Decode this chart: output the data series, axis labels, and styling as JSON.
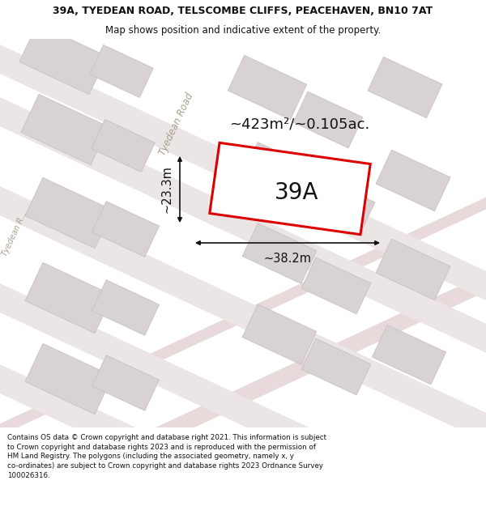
{
  "title_line1": "39A, TYEDEAN ROAD, TELSCOMBE CLIFFS, PEACEHAVEN, BN10 7AT",
  "title_line2": "Map shows position and indicative extent of the property.",
  "area_label": "~423m²/~0.105ac.",
  "plot_label": "39A",
  "width_label": "~38.2m",
  "height_label": "~23.3m",
  "road_label_diag": "Tyedean Road",
  "road_label_left": "Tyedean R...",
  "footer_text": "Contains OS data © Crown copyright and database right 2021. This information is subject\nto Crown copyright and database rights 2023 and is reproduced with the permission of\nHM Land Registry. The polygons (including the associated geometry, namely x, y\nco-ordinates) are subject to Crown copyright and database rights 2023 Ordnance Survey\n100026316.",
  "map_bg": "#f7f2f2",
  "building_fill": "#d8d2d2",
  "building_edge": "#c8c0c0",
  "plot_fill": "#ffffff",
  "plot_edge": "#dd0000",
  "dim_line_color": "#111111",
  "text_color": "#111111",
  "road_text_color": "#aaa090",
  "road_strip_color": "#e8dada",
  "title_bg": "#ffffff",
  "footer_bg": "#ffffff"
}
